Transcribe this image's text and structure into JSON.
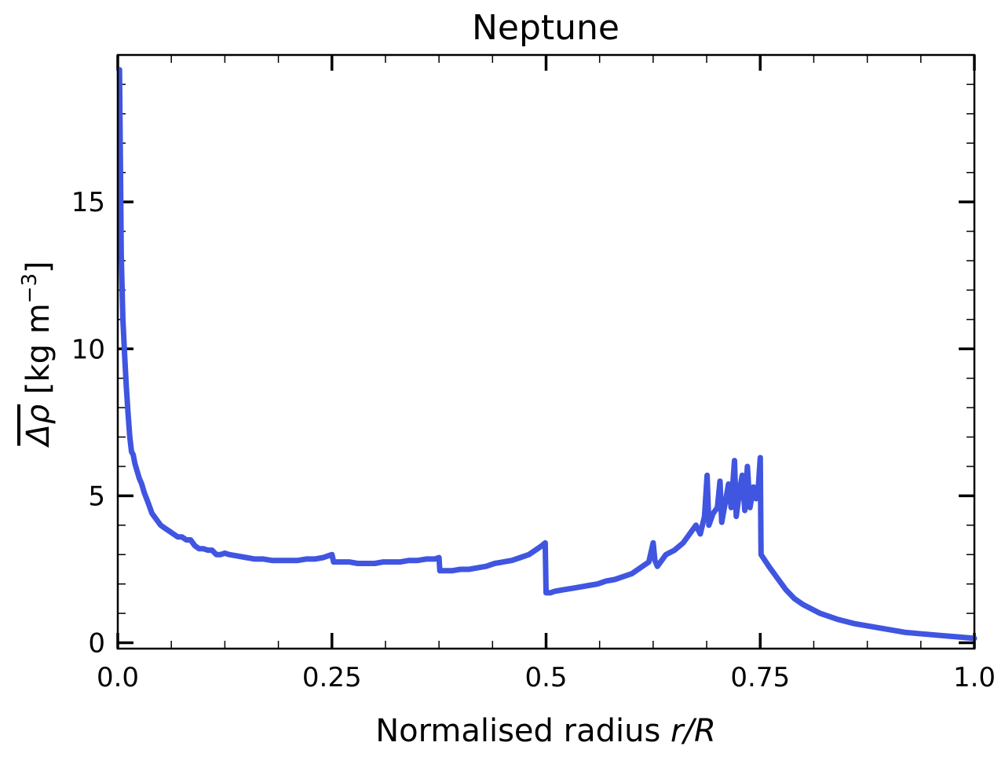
{
  "chart_data": {
    "type": "line",
    "title": "Neptune",
    "xlabel_parts": [
      "Normalised radius ",
      "r/R"
    ],
    "ylabel_parts": [
      "Δρ",
      " [kg m",
      "−3",
      "]"
    ],
    "xlim": [
      0.0,
      1.0
    ],
    "ylim": [
      -0.2,
      20.0
    ],
    "x_ticks": [
      {
        "value": 0.0,
        "label": "0.0"
      },
      {
        "value": 0.25,
        "label": "0.25"
      },
      {
        "value": 0.5,
        "label": "0.5"
      },
      {
        "value": 0.75,
        "label": "0.75"
      },
      {
        "value": 1.0,
        "label": "1.0"
      }
    ],
    "y_ticks": [
      {
        "value": 0,
        "label": "0"
      },
      {
        "value": 5,
        "label": "5"
      },
      {
        "value": 10,
        "label": "10"
      },
      {
        "value": 15,
        "label": "15"
      }
    ],
    "x_minor_step": 0.0625,
    "y_minor_step": 1,
    "grid": false,
    "series": [
      {
        "color": "#4055e0",
        "points": [
          [
            0.002,
            19.5
          ],
          [
            0.003,
            16.5
          ],
          [
            0.004,
            13.2
          ],
          [
            0.006,
            11.0
          ],
          [
            0.008,
            9.8
          ],
          [
            0.01,
            8.7
          ],
          [
            0.012,
            7.8
          ],
          [
            0.014,
            7.0
          ],
          [
            0.016,
            6.5
          ],
          [
            0.018,
            6.4
          ],
          [
            0.02,
            6.1
          ],
          [
            0.022,
            5.9
          ],
          [
            0.025,
            5.6
          ],
          [
            0.028,
            5.4
          ],
          [
            0.031,
            5.1
          ],
          [
            0.035,
            4.8
          ],
          [
            0.04,
            4.4
          ],
          [
            0.045,
            4.2
          ],
          [
            0.05,
            4.0
          ],
          [
            0.055,
            3.9
          ],
          [
            0.06,
            3.8
          ],
          [
            0.065,
            3.7
          ],
          [
            0.07,
            3.6
          ],
          [
            0.075,
            3.6
          ],
          [
            0.08,
            3.5
          ],
          [
            0.085,
            3.5
          ],
          [
            0.09,
            3.3
          ],
          [
            0.095,
            3.2
          ],
          [
            0.1,
            3.2
          ],
          [
            0.105,
            3.15
          ],
          [
            0.11,
            3.15
          ],
          [
            0.115,
            3.0
          ],
          [
            0.12,
            3.0
          ],
          [
            0.125,
            3.05
          ],
          [
            0.13,
            3.0
          ],
          [
            0.14,
            2.95
          ],
          [
            0.15,
            2.9
          ],
          [
            0.16,
            2.85
          ],
          [
            0.17,
            2.85
          ],
          [
            0.18,
            2.8
          ],
          [
            0.19,
            2.8
          ],
          [
            0.2,
            2.8
          ],
          [
            0.21,
            2.8
          ],
          [
            0.22,
            2.85
          ],
          [
            0.23,
            2.85
          ],
          [
            0.24,
            2.9
          ],
          [
            0.245,
            2.95
          ],
          [
            0.25,
            3.0
          ],
          [
            0.252,
            2.75
          ],
          [
            0.255,
            2.75
          ],
          [
            0.26,
            2.75
          ],
          [
            0.27,
            2.75
          ],
          [
            0.28,
            2.7
          ],
          [
            0.29,
            2.7
          ],
          [
            0.3,
            2.7
          ],
          [
            0.31,
            2.75
          ],
          [
            0.32,
            2.75
          ],
          [
            0.33,
            2.75
          ],
          [
            0.34,
            2.8
          ],
          [
            0.35,
            2.8
          ],
          [
            0.36,
            2.85
          ],
          [
            0.37,
            2.85
          ],
          [
            0.375,
            2.9
          ],
          [
            0.376,
            2.45
          ],
          [
            0.38,
            2.45
          ],
          [
            0.39,
            2.45
          ],
          [
            0.4,
            2.5
          ],
          [
            0.41,
            2.5
          ],
          [
            0.42,
            2.55
          ],
          [
            0.43,
            2.6
          ],
          [
            0.44,
            2.7
          ],
          [
            0.45,
            2.75
          ],
          [
            0.46,
            2.8
          ],
          [
            0.47,
            2.9
          ],
          [
            0.48,
            3.0
          ],
          [
            0.49,
            3.2
          ],
          [
            0.495,
            3.3
          ],
          [
            0.499,
            3.4
          ],
          [
            0.5,
            1.7
          ],
          [
            0.505,
            1.7
          ],
          [
            0.51,
            1.75
          ],
          [
            0.52,
            1.8
          ],
          [
            0.53,
            1.85
          ],
          [
            0.54,
            1.9
          ],
          [
            0.55,
            1.95
          ],
          [
            0.56,
            2.0
          ],
          [
            0.57,
            2.1
          ],
          [
            0.58,
            2.15
          ],
          [
            0.59,
            2.25
          ],
          [
            0.6,
            2.35
          ],
          [
            0.61,
            2.55
          ],
          [
            0.62,
            2.75
          ],
          [
            0.625,
            3.4
          ],
          [
            0.627,
            2.8
          ],
          [
            0.63,
            2.6
          ],
          [
            0.64,
            3.0
          ],
          [
            0.65,
            3.15
          ],
          [
            0.66,
            3.4
          ],
          [
            0.67,
            3.8
          ],
          [
            0.675,
            4.0
          ],
          [
            0.68,
            3.7
          ],
          [
            0.685,
            4.3
          ],
          [
            0.688,
            5.7
          ],
          [
            0.69,
            4.0
          ],
          [
            0.695,
            4.4
          ],
          [
            0.7,
            4.6
          ],
          [
            0.703,
            5.5
          ],
          [
            0.705,
            4.1
          ],
          [
            0.71,
            4.9
          ],
          [
            0.713,
            5.4
          ],
          [
            0.716,
            4.6
          ],
          [
            0.72,
            6.2
          ],
          [
            0.722,
            4.3
          ],
          [
            0.726,
            5.2
          ],
          [
            0.729,
            5.7
          ],
          [
            0.732,
            4.5
          ],
          [
            0.735,
            6.0
          ],
          [
            0.738,
            4.6
          ],
          [
            0.742,
            5.3
          ],
          [
            0.745,
            4.9
          ],
          [
            0.748,
            5.4
          ],
          [
            0.75,
            6.3
          ],
          [
            0.751,
            3.0
          ],
          [
            0.76,
            2.6
          ],
          [
            0.77,
            2.2
          ],
          [
            0.78,
            1.8
          ],
          [
            0.79,
            1.5
          ],
          [
            0.8,
            1.3
          ],
          [
            0.82,
            1.0
          ],
          [
            0.84,
            0.8
          ],
          [
            0.86,
            0.65
          ],
          [
            0.88,
            0.55
          ],
          [
            0.9,
            0.45
          ],
          [
            0.92,
            0.35
          ],
          [
            0.94,
            0.3
          ],
          [
            0.96,
            0.25
          ],
          [
            0.98,
            0.2
          ],
          [
            1.0,
            0.15
          ]
        ]
      }
    ]
  }
}
